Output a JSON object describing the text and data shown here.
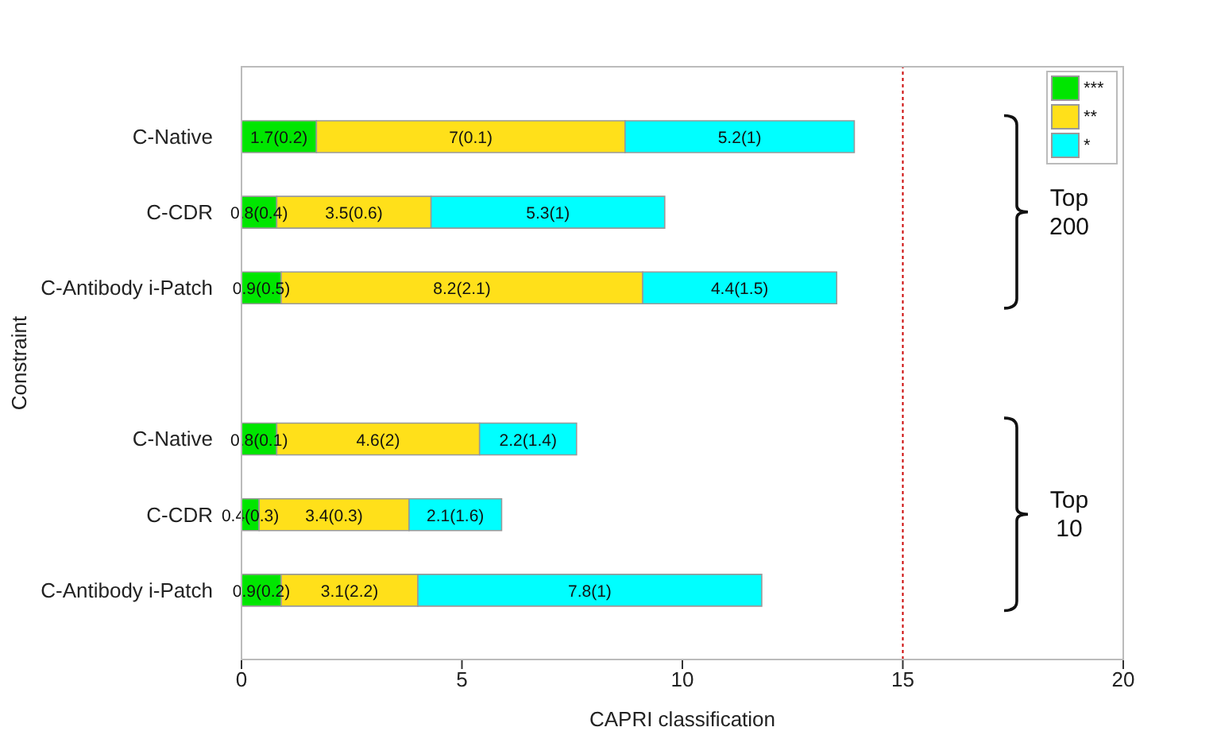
{
  "chart_data": {
    "type": "bar",
    "orientation": "horizontal",
    "stacked": true,
    "xlabel": "CAPRI classification",
    "ylabel": "Constraint",
    "categories": [
      "C-Native",
      "C-CDR",
      "C-Antibody i-Patch",
      null,
      "C-Native",
      "C-CDR",
      "C-Antibody i-Patch"
    ],
    "series": [
      {
        "name": "***",
        "color": "#00e600",
        "values": [
          1.7,
          0.8,
          0.9,
          null,
          0.8,
          0.4,
          0.9
        ],
        "value_labels": [
          "1.7(0.2)",
          "0.8(0.4)",
          "0.9(0.5)",
          null,
          "0.8(0.1)",
          "0.4(0.3)",
          "0.9(0.2)"
        ]
      },
      {
        "name": "**",
        "color": "#ffe01a",
        "values": [
          7,
          3.5,
          8.2,
          null,
          4.6,
          3.4,
          3.1
        ],
        "value_labels": [
          "7(0.1)",
          "3.5(0.6)",
          "8.2(2.1)",
          null,
          "4.6(2)",
          "3.4(0.3)",
          "3.1(2.2)"
        ]
      },
      {
        "name": "*",
        "color": "#00ffff",
        "values": [
          5.2,
          5.3,
          4.4,
          null,
          2.2,
          2.1,
          7.8
        ],
        "value_labels": [
          "5.2(1)",
          "5.3(1)",
          "4.4(1.5)",
          null,
          "2.2(1.4)",
          "2.1(1.6)",
          "7.8(1)"
        ]
      }
    ],
    "xlim": [
      0,
      20
    ],
    "xticks": [
      0,
      5,
      10,
      15,
      20
    ],
    "ref_lines": [
      {
        "axis": "x",
        "value": 15,
        "color": "#cc0000",
        "line_style": "dotted"
      }
    ],
    "annotations": [
      "Top 200",
      "Top 10"
    ],
    "legend": "top right",
    "grid": false
  }
}
